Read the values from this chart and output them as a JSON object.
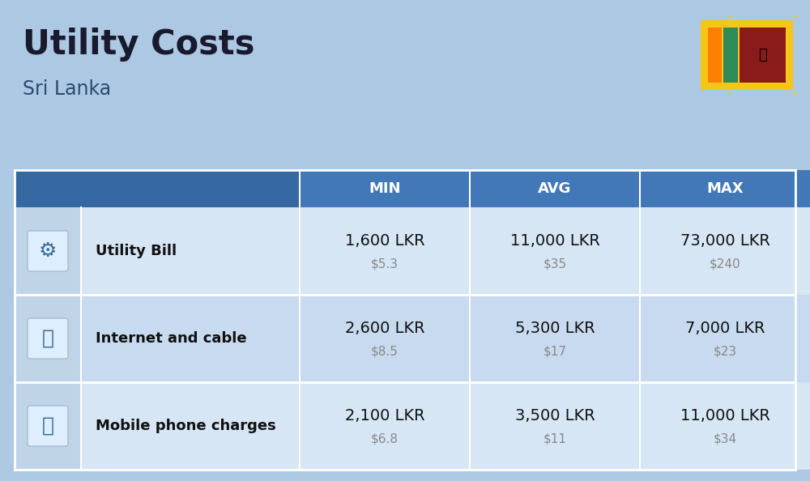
{
  "title": "Utility Costs",
  "subtitle": "Sri Lanka",
  "background_color": "#adc8e2",
  "header_bg_color": "#3a6fa8",
  "header_text_color": "#ffffff",
  "row_bg_color_1": "#d6e6f5",
  "row_bg_color_2": "#c8daf0",
  "icon_col_bg": "#c0d4e8",
  "columns": [
    "MIN",
    "AVG",
    "MAX"
  ],
  "rows": [
    {
      "label": "Utility Bill",
      "min_lkr": "1,600 LKR",
      "min_usd": "$5.3",
      "avg_lkr": "11,000 LKR",
      "avg_usd": "$35",
      "max_lkr": "73,000 LKR",
      "max_usd": "$240"
    },
    {
      "label": "Internet and cable",
      "min_lkr": "2,600 LKR",
      "min_usd": "$8.5",
      "avg_lkr": "5,300 LKR",
      "avg_usd": "$17",
      "max_lkr": "7,000 LKR",
      "max_usd": "$23"
    },
    {
      "label": "Mobile phone charges",
      "min_lkr": "2,100 LKR",
      "min_usd": "$6.8",
      "avg_lkr": "3,500 LKR",
      "avg_usd": "$11",
      "max_lkr": "11,000 LKR",
      "max_usd": "$34"
    }
  ],
  "title_fontsize": 30,
  "subtitle_fontsize": 17,
  "header_fontsize": 13,
  "label_fontsize": 13,
  "value_fontsize": 14,
  "usd_fontsize": 11,
  "flag_gold": "#f5c518",
  "flag_maroon": "#8b1a1a",
  "flag_orange": "#ff7f00",
  "flag_green": "#2e8b57"
}
